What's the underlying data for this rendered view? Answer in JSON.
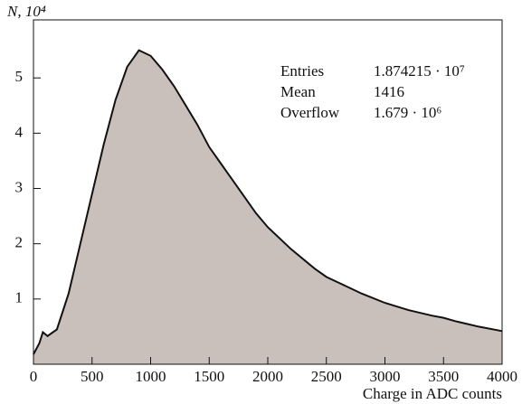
{
  "chart_data": {
    "type": "area",
    "y_label": "N, 10⁴",
    "x_label": "Charge in ADC counts",
    "x": [
      0,
      50,
      80,
      120,
      200,
      300,
      400,
      500,
      600,
      700,
      800,
      900,
      1000,
      1100,
      1200,
      1300,
      1400,
      1500,
      1600,
      1700,
      1800,
      1900,
      2000,
      2200,
      2400,
      2500,
      2600,
      2800,
      3000,
      3200,
      3400,
      3500,
      3600,
      3800,
      4000
    ],
    "values": [
      0,
      0.2,
      0.4,
      0.33,
      0.45,
      1.1,
      2.0,
      2.9,
      3.8,
      4.6,
      5.2,
      5.5,
      5.4,
      5.15,
      4.85,
      4.5,
      4.15,
      3.75,
      3.45,
      3.15,
      2.85,
      2.55,
      2.3,
      1.9,
      1.55,
      1.4,
      1.3,
      1.1,
      0.93,
      0.8,
      0.7,
      0.66,
      0.6,
      0.5,
      0.42
    ],
    "fill": "#c9c0bb",
    "color": "#111111",
    "xlim": [
      0,
      4000
    ],
    "xticks": [
      0,
      500,
      1000,
      1500,
      2000,
      2500,
      3000,
      3500,
      4000
    ],
    "ylim": [
      -0.18,
      6.05
    ],
    "yticks": [
      1,
      2,
      3,
      4,
      5
    ],
    "stats": [
      [
        "Entries",
        "1.874215 · 10⁷"
      ],
      [
        "Mean",
        "1416"
      ],
      [
        "Overflow",
        "1.679 · 10⁶"
      ]
    ]
  }
}
